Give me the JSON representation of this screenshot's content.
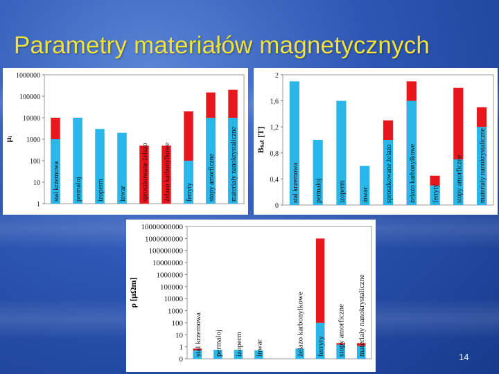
{
  "slide": {
    "title": "Parametry materiałów magnetycznych",
    "page_number": "14"
  },
  "colors": {
    "base": "#29b6e8",
    "top": "#e8171b",
    "background": "#2d57b4",
    "title": "#f2e23a"
  },
  "chart_data": [
    {
      "type": "bar",
      "title": "",
      "ylabel": "μᵢ",
      "scale": "log",
      "ylim": [
        1,
        1000000
      ],
      "yticks": [
        1,
        10,
        100,
        1000,
        10000,
        100000,
        1000000
      ],
      "ytick_labels": [
        "1",
        "10",
        "100",
        "1000",
        "10000",
        "100000",
        "1000000"
      ],
      "categories": [
        "stal krzemowa",
        "permaloj",
        "izoperm",
        "inwar",
        "sproszkowane żelazo",
        "żelazo karbonylkowe",
        "ferryty",
        "stopy amorficzne",
        "materiały nanokrystaliczne"
      ],
      "series": [
        {
          "values": [
            1000,
            10000,
            3000,
            2000,
            null,
            null,
            100,
            10000,
            10000
          ]
        },
        {
          "values": [
            10000,
            null,
            null,
            null,
            500,
            500,
            20000,
            150000,
            200000
          ]
        }
      ]
    },
    {
      "type": "bar",
      "title": "",
      "ylabel": "Bₛₐₜ [T]",
      "scale": "linear",
      "ylim": [
        0,
        2
      ],
      "yticks": [
        0,
        0.4,
        0.8,
        1.2,
        1.6,
        2
      ],
      "ytick_labels": [
        "0",
        "0,4",
        "0,8",
        "1,2",
        "1,6",
        "2"
      ],
      "categories": [
        "stal krzemowa",
        "permaloj",
        "izoperm",
        "inwar",
        "sproszkowane żelazo",
        "żelazo karbonylkowe",
        "ferryty",
        "stopy amorficzne",
        "materiały nanokrystaliczne"
      ],
      "series": [
        {
          "values": [
            1.9,
            1.0,
            1.6,
            0.6,
            1.0,
            1.6,
            0.3,
            0.7,
            1.2
          ]
        },
        {
          "values": [
            null,
            null,
            null,
            null,
            1.3,
            1.9,
            0.45,
            1.8,
            1.5
          ]
        }
      ]
    },
    {
      "type": "bar",
      "title": "",
      "ylabel": "ρ [μΩm]",
      "scale": "log",
      "ylim": [
        0,
        10000000000
      ],
      "yticks": [
        0,
        1,
        10,
        100,
        1000,
        10000,
        100000,
        1000000,
        10000000,
        100000000,
        1000000000,
        10000000000
      ],
      "ytick_labels": [
        "0",
        "1",
        "10",
        "100",
        "1000",
        "10000",
        "100000",
        "1000000",
        "10000000",
        "100000000",
        "1000000000",
        "10000000000"
      ],
      "categories": [
        "stal krzemowa",
        "permaloj",
        "izoperm",
        "inwar",
        "",
        "żelazo karbonylkowe",
        "ferryty",
        "stopy amorficzne",
        "materiały nanokrystaliczne"
      ],
      "series": [
        {
          "values": [
            0.5,
            0.55,
            0.55,
            0.5,
            null,
            0.7,
            100,
            1.5,
            1.2
          ]
        },
        {
          "values": [
            0.7,
            null,
            null,
            null,
            null,
            null,
            1000000000,
            2.0,
            2.0
          ]
        }
      ]
    }
  ]
}
